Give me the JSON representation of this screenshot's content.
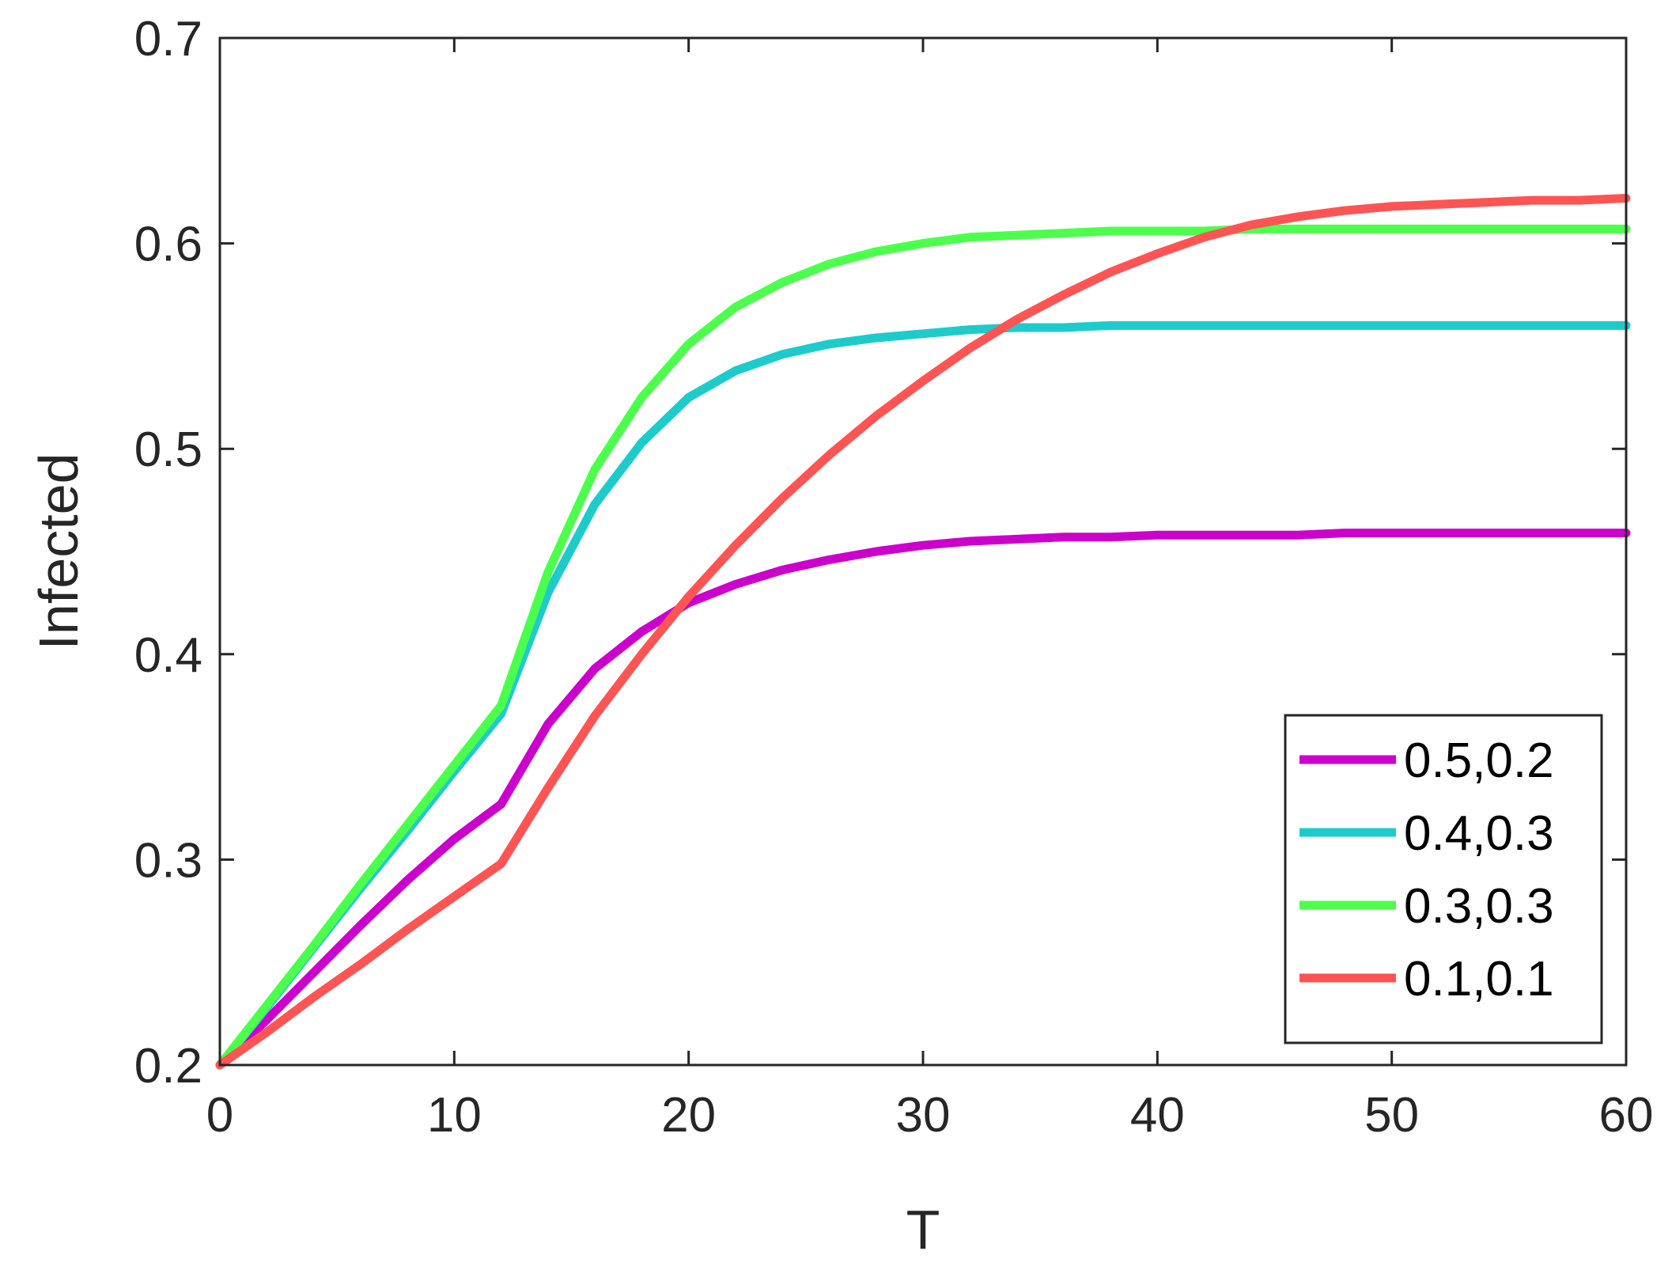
{
  "chart_data": {
    "type": "line",
    "xlabel": "T",
    "ylabel": "Infected",
    "xlim": [
      0,
      60
    ],
    "ylim": [
      0.2,
      0.7
    ],
    "xticks": [
      "0",
      "10",
      "20",
      "30",
      "40",
      "50",
      "60"
    ],
    "yticks": [
      "0.2",
      "0.3",
      "0.4",
      "0.5",
      "0.6",
      "0.7"
    ],
    "grid": false,
    "legend_position": "bottom-right",
    "x": [
      0,
      2,
      4,
      6,
      8,
      10,
      12,
      14,
      16,
      18,
      20,
      22,
      24,
      26,
      28,
      30,
      32,
      34,
      36,
      38,
      40,
      42,
      44,
      46,
      48,
      50,
      52,
      54,
      56,
      58,
      60
    ],
    "series": [
      {
        "name": "0.5,0.2",
        "color": "#cc00cc",
        "values": [
          0.2,
          0.222,
          0.245,
          0.268,
          0.29,
          0.31,
          0.327,
          0.366,
          0.393,
          0.411,
          0.425,
          0.434,
          0.441,
          0.446,
          0.45,
          0.453,
          0.455,
          0.456,
          0.457,
          0.457,
          0.458,
          0.458,
          0.458,
          0.458,
          0.459,
          0.459,
          0.459,
          0.459,
          0.459,
          0.459,
          0.459
        ]
      },
      {
        "name": "0.4,0.3",
        "color": "#1ecbcb",
        "values": [
          0.2,
          0.228,
          0.257,
          0.286,
          0.314,
          0.343,
          0.371,
          0.43,
          0.473,
          0.503,
          0.525,
          0.538,
          0.546,
          0.551,
          0.554,
          0.556,
          0.558,
          0.559,
          0.559,
          0.56,
          0.56,
          0.56,
          0.56,
          0.56,
          0.56,
          0.56,
          0.56,
          0.56,
          0.56,
          0.56,
          0.56
        ]
      },
      {
        "name": "0.3,0.3",
        "color": "#4cff4c",
        "values": [
          0.2,
          0.229,
          0.258,
          0.288,
          0.317,
          0.346,
          0.375,
          0.44,
          0.49,
          0.525,
          0.551,
          0.569,
          0.581,
          0.59,
          0.596,
          0.6,
          0.603,
          0.604,
          0.605,
          0.606,
          0.606,
          0.606,
          0.607,
          0.607,
          0.607,
          0.607,
          0.607,
          0.607,
          0.607,
          0.607,
          0.607
        ]
      },
      {
        "name": "0.1,0.1",
        "color": "#ff5454",
        "values": [
          0.2,
          0.216,
          0.233,
          0.249,
          0.266,
          0.282,
          0.298,
          0.335,
          0.37,
          0.4,
          0.428,
          0.453,
          0.476,
          0.497,
          0.516,
          0.533,
          0.549,
          0.563,
          0.575,
          0.586,
          0.595,
          0.603,
          0.609,
          0.613,
          0.616,
          0.618,
          0.619,
          0.62,
          0.621,
          0.621,
          0.622
        ]
      }
    ]
  }
}
